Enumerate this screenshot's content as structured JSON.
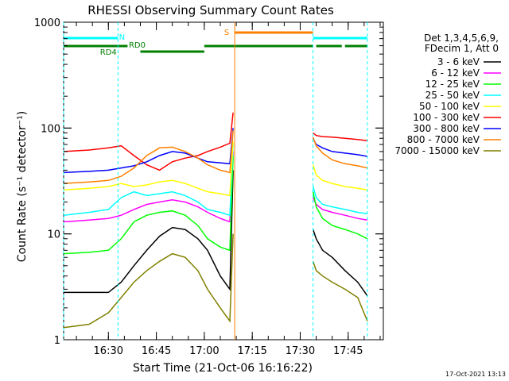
{
  "chart_data": {
    "type": "line",
    "title": "RHESSI Observing Summary Count Rates",
    "xlabel": "Start Time (21-Oct-06 16:16:22)",
    "ylabel": "Count Rate (s⁻¹ detector⁻¹)",
    "y_scale": "log",
    "ylim": [
      1,
      1000
    ],
    "xlim_minutes_after_1616": [
      0,
      100
    ],
    "x_tick_labels": [
      "16:30",
      "16:45",
      "17:00",
      "17:15",
      "17:30",
      "17:45"
    ],
    "x_tick_minutes": [
      14,
      29,
      44,
      59,
      74,
      89
    ],
    "y_tick_labels": [
      "1",
      "10",
      "100",
      "1000"
    ],
    "y_tick_values": [
      1,
      10,
      100,
      1000
    ],
    "legend_header": [
      "Det 1,3,4,5,6,9,",
      "FDecim 1, Att 0"
    ],
    "legend_position": "right",
    "timestamp": "17-Oct-2021 13:13",
    "series": [
      {
        "name": "3 - 6 keV",
        "color": "#000000",
        "x": [
          0,
          8,
          14,
          18,
          22,
          26,
          30,
          34,
          38,
          42,
          45,
          49,
          52,
          53,
          78,
          79,
          81,
          84,
          88,
          92,
          95
        ],
        "y": [
          2.8,
          2.8,
          2.8,
          3.5,
          5,
          7,
          9.5,
          11.5,
          11,
          9,
          7,
          4,
          3,
          40,
          11,
          9,
          7,
          6,
          4.5,
          3.5,
          2.6
        ]
      },
      {
        "name": "6 - 12 keV",
        "color": "#ff00ff",
        "x": [
          0,
          8,
          14,
          18,
          22,
          26,
          30,
          34,
          38,
          42,
          45,
          49,
          52,
          53,
          78,
          79,
          81,
          84,
          88,
          92,
          95
        ],
        "y": [
          13,
          13.5,
          14,
          15,
          17,
          19,
          20,
          21,
          20,
          18,
          16,
          14,
          13,
          60,
          22,
          19,
          17,
          16,
          15,
          14,
          13.5
        ]
      },
      {
        "name": "12 - 25 keV",
        "color": "#00ff00",
        "x": [
          0,
          8,
          14,
          18,
          22,
          26,
          30,
          34,
          38,
          42,
          45,
          49,
          52,
          53,
          78,
          79,
          81,
          84,
          88,
          92,
          95
        ],
        "y": [
          6.5,
          6.7,
          7,
          9,
          13,
          15,
          16,
          16.5,
          15,
          12,
          9,
          7.5,
          7,
          55,
          25,
          18,
          14,
          12,
          11,
          10,
          9
        ]
      },
      {
        "name": "25 - 50 keV",
        "color": "#00ffff",
        "x": [
          0,
          8,
          14,
          18,
          22,
          26,
          30,
          34,
          38,
          42,
          45,
          49,
          52,
          53,
          78,
          79,
          81,
          84,
          88,
          92,
          95
        ],
        "y": [
          15,
          16,
          17,
          22,
          25,
          23,
          24,
          25,
          23,
          20,
          17,
          16,
          15,
          70,
          28,
          22,
          19,
          18,
          17,
          16,
          15.5
        ]
      },
      {
        "name": "50 - 100 keV",
        "color": "#ffff00",
        "x": [
          0,
          8,
          14,
          18,
          22,
          26,
          30,
          34,
          38,
          42,
          45,
          49,
          52,
          53,
          78,
          79,
          81,
          84,
          88,
          92,
          95
        ],
        "y": [
          26,
          27,
          28,
          30,
          28,
          29,
          31,
          32,
          30,
          27,
          25,
          24,
          23,
          75,
          45,
          36,
          32,
          30,
          28,
          27,
          26
        ]
      },
      {
        "name": "100 - 300 keV",
        "color": "#ff0000",
        "x": [
          0,
          8,
          14,
          18,
          22,
          26,
          30,
          34,
          38,
          42,
          45,
          49,
          52,
          53,
          78,
          79,
          81,
          84,
          88,
          92,
          95
        ],
        "y": [
          60,
          62,
          65,
          68,
          55,
          45,
          40,
          48,
          52,
          55,
          60,
          66,
          72,
          140,
          90,
          85,
          83,
          82,
          80,
          78,
          76
        ]
      },
      {
        "name": "300 - 800 keV",
        "color": "#0000ff",
        "x": [
          0,
          8,
          14,
          18,
          22,
          26,
          30,
          34,
          38,
          42,
          45,
          49,
          52,
          53,
          78,
          79,
          81,
          84,
          88,
          92,
          95
        ],
        "y": [
          38,
          39,
          40,
          42,
          44,
          48,
          55,
          60,
          58,
          52,
          48,
          47,
          46,
          100,
          80,
          70,
          65,
          60,
          58,
          56,
          54
        ]
      },
      {
        "name": "800 - 7000 keV",
        "color": "#ff8000",
        "x": [
          0,
          8,
          14,
          18,
          22,
          26,
          30,
          34,
          38,
          42,
          45,
          49,
          52,
          53,
          78,
          79,
          81,
          84,
          88,
          92,
          95
        ],
        "y": [
          30,
          31,
          32,
          35,
          42,
          55,
          65,
          66,
          60,
          52,
          45,
          40,
          38,
          95,
          82,
          68,
          58,
          50,
          46,
          44,
          42
        ]
      },
      {
        "name": "7000 - 15000 keV",
        "color": "#808000",
        "x": [
          0,
          8,
          14,
          18,
          22,
          26,
          30,
          34,
          38,
          42,
          45,
          49,
          52,
          53,
          78,
          79,
          81,
          84,
          88,
          92,
          95
        ],
        "y": [
          1.3,
          1.4,
          1.8,
          2.5,
          3.5,
          4.5,
          5.5,
          6.5,
          6,
          4.5,
          3,
          2,
          1.5,
          10,
          5.5,
          4.5,
          4,
          3.5,
          3,
          2.5,
          1.5
        ]
      }
    ],
    "state_bars": [
      {
        "label": "N",
        "color": "#00ffff",
        "segments": [
          [
            0,
            17
          ],
          [
            78,
            95
          ]
        ]
      },
      {
        "label": "S",
        "color": "#ff8000",
        "segments": [
          [
            53.5,
            78
          ]
        ]
      },
      {
        "label": "RD0",
        "color": "#008000",
        "segments": [
          [
            24,
            44
          ],
          [
            44,
            78
          ],
          [
            79,
            87
          ],
          [
            88,
            95
          ]
        ]
      },
      {
        "label": "RD4",
        "color": "#008000",
        "segments": [
          [
            0,
            20
          ]
        ]
      }
    ],
    "cyan_markers_minutes": [
      0,
      17,
      78,
      95
    ],
    "orange_markers_minutes": [
      53.5
    ]
  }
}
